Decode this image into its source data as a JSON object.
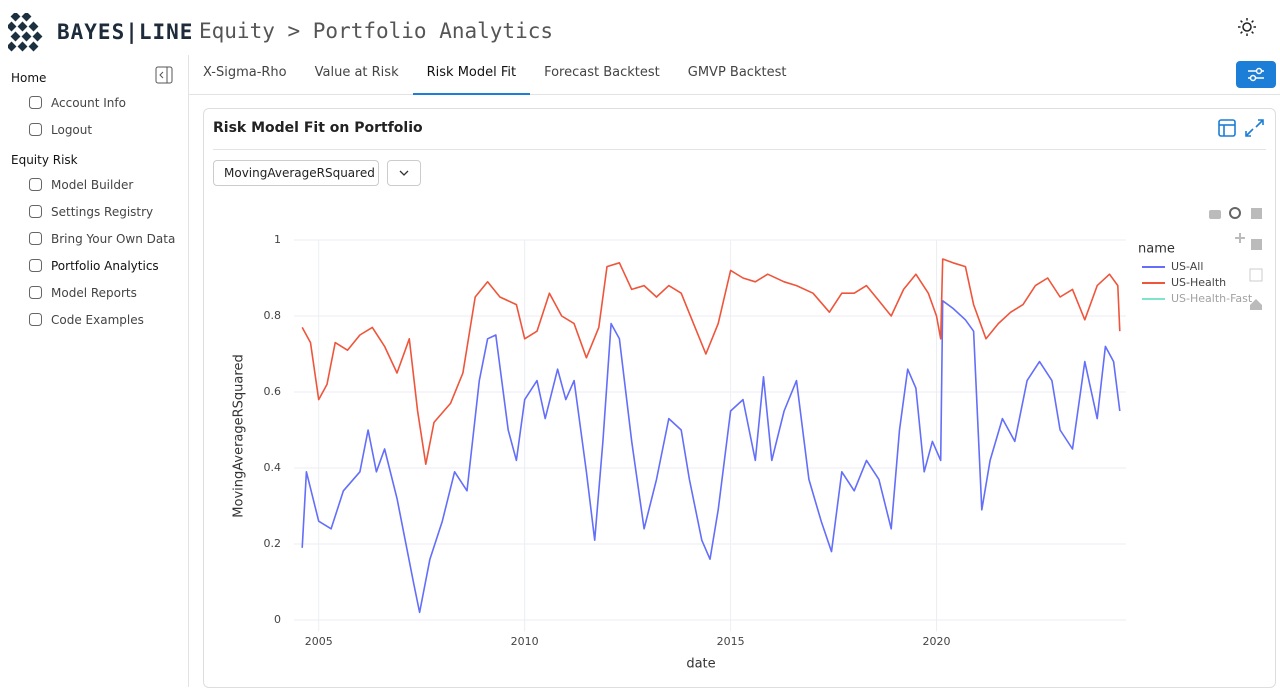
{
  "header": {
    "logo": "BAYES|LINE",
    "breadcrumb": "Equity > Portfolio Analytics"
  },
  "sidebar": {
    "sections": [
      {
        "title": "Home",
        "items": [
          "Account Info",
          "Logout"
        ]
      },
      {
        "title": "Equity Risk",
        "items": [
          "Model Builder",
          "Settings Registry",
          "Bring Your Own Data",
          "Portfolio Analytics",
          "Model Reports",
          "Code Examples"
        ]
      }
    ]
  },
  "tabs": [
    "X-Sigma-Rho",
    "Value at Risk",
    "Risk Model Fit",
    "Forecast Backtest",
    "GMVP Backtest"
  ],
  "card": {
    "title": "Risk Model Fit on Portfolio",
    "dropdown": "MovingAverageRSquared"
  },
  "chart_data": {
    "type": "line",
    "x_label": "date",
    "y_label": "MovingAverageRSquared",
    "legend_title": "name",
    "xlim": [
      2004.4,
      2024.6
    ],
    "xticks": [
      2005,
      2010,
      2015,
      2020
    ],
    "ylim": [
      -0.03,
      1.0
    ],
    "yticks": [
      0,
      0.2,
      0.4,
      0.6,
      0.8,
      1
    ],
    "grid": true,
    "series": [
      {
        "name": "US-All",
        "color": "#636efa",
        "x": [
          2004.6,
          2004.7,
          2005.0,
          2005.3,
          2005.6,
          2006.0,
          2006.2,
          2006.4,
          2006.6,
          2006.9,
          2007.1,
          2007.3,
          2007.45,
          2007.7,
          2008.0,
          2008.3,
          2008.6,
          2008.9,
          2009.1,
          2009.3,
          2009.6,
          2009.8,
          2010.0,
          2010.3,
          2010.5,
          2010.8,
          2011.0,
          2011.2,
          2011.5,
          2011.7,
          2011.9,
          2012.1,
          2012.3,
          2012.6,
          2012.9,
          2013.2,
          2013.5,
          2013.8,
          2014.0,
          2014.3,
          2014.5,
          2014.7,
          2015.0,
          2015.3,
          2015.6,
          2015.8,
          2016.0,
          2016.3,
          2016.6,
          2016.9,
          2017.2,
          2017.45,
          2017.7,
          2018.0,
          2018.3,
          2018.6,
          2018.9,
          2019.1,
          2019.3,
          2019.5,
          2019.7,
          2019.9,
          2020.1,
          2020.15,
          2020.4,
          2020.7,
          2020.9,
          2021.1,
          2021.3,
          2021.6,
          2021.9,
          2022.2,
          2022.5,
          2022.8,
          2023.0,
          2023.3,
          2023.6,
          2023.9,
          2024.1,
          2024.3,
          2024.45
        ],
        "values": [
          0.19,
          0.39,
          0.26,
          0.24,
          0.34,
          0.39,
          0.5,
          0.39,
          0.45,
          0.32,
          0.21,
          0.1,
          0.02,
          0.16,
          0.26,
          0.39,
          0.34,
          0.63,
          0.74,
          0.75,
          0.5,
          0.42,
          0.58,
          0.63,
          0.53,
          0.66,
          0.58,
          0.63,
          0.39,
          0.21,
          0.47,
          0.78,
          0.74,
          0.47,
          0.24,
          0.37,
          0.53,
          0.5,
          0.37,
          0.21,
          0.16,
          0.29,
          0.55,
          0.58,
          0.42,
          0.64,
          0.42,
          0.55,
          0.63,
          0.37,
          0.26,
          0.18,
          0.39,
          0.34,
          0.42,
          0.37,
          0.24,
          0.5,
          0.66,
          0.61,
          0.39,
          0.47,
          0.42,
          0.84,
          0.82,
          0.79,
          0.76,
          0.29,
          0.42,
          0.53,
          0.47,
          0.63,
          0.68,
          0.63,
          0.5,
          0.45,
          0.68,
          0.53,
          0.72,
          0.68,
          0.55
        ]
      },
      {
        "name": "US-Health",
        "color": "#ef553b",
        "x": [
          2004.6,
          2004.8,
          2005.0,
          2005.2,
          2005.4,
          2005.7,
          2006.0,
          2006.3,
          2006.6,
          2006.9,
          2007.2,
          2007.4,
          2007.6,
          2007.8,
          2008.2,
          2008.5,
          2008.8,
          2009.1,
          2009.4,
          2009.8,
          2010.0,
          2010.3,
          2010.6,
          2010.9,
          2011.2,
          2011.5,
          2011.8,
          2012.0,
          2012.3,
          2012.6,
          2012.9,
          2013.2,
          2013.5,
          2013.8,
          2014.1,
          2014.4,
          2014.7,
          2015.0,
          2015.3,
          2015.6,
          2015.9,
          2016.3,
          2016.6,
          2017.0,
          2017.4,
          2017.7,
          2018.0,
          2018.3,
          2018.6,
          2018.9,
          2019.2,
          2019.5,
          2019.8,
          2020.0,
          2020.1,
          2020.15,
          2020.4,
          2020.7,
          2020.9,
          2021.2,
          2021.5,
          2021.8,
          2022.1,
          2022.4,
          2022.7,
          2023.0,
          2023.3,
          2023.6,
          2023.9,
          2024.2,
          2024.4,
          2024.45
        ],
        "values": [
          0.77,
          0.73,
          0.58,
          0.62,
          0.73,
          0.71,
          0.75,
          0.77,
          0.72,
          0.65,
          0.74,
          0.55,
          0.41,
          0.52,
          0.57,
          0.65,
          0.85,
          0.89,
          0.85,
          0.83,
          0.74,
          0.76,
          0.86,
          0.8,
          0.78,
          0.69,
          0.77,
          0.93,
          0.94,
          0.87,
          0.88,
          0.85,
          0.88,
          0.86,
          0.78,
          0.7,
          0.78,
          0.92,
          0.9,
          0.89,
          0.91,
          0.89,
          0.88,
          0.86,
          0.81,
          0.86,
          0.86,
          0.88,
          0.84,
          0.8,
          0.87,
          0.91,
          0.86,
          0.8,
          0.74,
          0.95,
          0.94,
          0.93,
          0.83,
          0.74,
          0.78,
          0.81,
          0.83,
          0.88,
          0.9,
          0.85,
          0.87,
          0.79,
          0.88,
          0.91,
          0.88,
          0.76
        ]
      },
      {
        "name": "US-Health-Fast",
        "color": "#00cc96",
        "visible": "legendonly"
      }
    ]
  }
}
